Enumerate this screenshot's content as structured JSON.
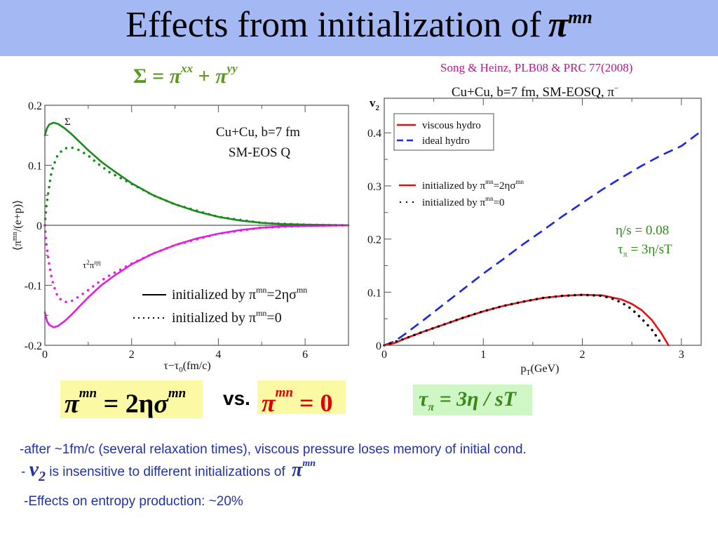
{
  "slide": {
    "title_text": "Effects from initialization of",
    "title_symbol": "π",
    "title_superscript": "mn",
    "citation": "Song & Heinz, PLB08 & PRC 77(2008)",
    "sigma_equation": {
      "lhs": "Σ",
      "eq": " = ",
      "pi1": "π",
      "sup1": "xx",
      "plus": " + ",
      "pi2": "π",
      "sup2": "yy"
    },
    "eq_navier_stokes": {
      "pi": "π",
      "sup": "mn",
      "rest": " = 2η",
      "sigma": "σ",
      "sup2": "mn"
    },
    "vs_label": "vs.",
    "eq_zero": {
      "pi": "π",
      "sup": "mn",
      "rest": " = 0"
    },
    "eq_tau": {
      "tau": "τ",
      "sub": "π",
      "rest": " = 3η / sT"
    },
    "bullets": [
      "-after ~1fm/c (several relaxation times), viscous pressure loses memory of initial cond.",
      {
        "prefix": "- ",
        "v": "v",
        "v_sub": "2",
        "text": " is insensitive to different initializations of ",
        "pi": "π",
        "pi_sup": "mn"
      },
      "-Effects on entropy production: ~20%"
    ],
    "colors": {
      "title_bar": "#a4b8f4",
      "citation": "#c0148c",
      "sigma_green": "#5a9a1a",
      "curve_green": "#1a8a1a",
      "curve_magenta": "#e020e0",
      "viscous_red": "#e81010",
      "ideal_blue": "#1a28e0",
      "bullet_text": "#2233a0",
      "eq_yellow": "#fbf9a4",
      "eq_green": "#cff7c6"
    }
  },
  "chart_data": [
    {
      "type": "line",
      "title": "",
      "annotation_lines": [
        "Cu+Cu, b=7 fm",
        "SM-EOS Q"
      ],
      "xlabel": "τ−τ0(fm/c)",
      "ylabel": "⟨π^mn/(e+p)⟩",
      "xlim": [
        0,
        7
      ],
      "ylim": [
        -0.2,
        0.2
      ],
      "xticks": [
        0,
        2,
        4,
        6
      ],
      "xtick_labels": [
        "0",
        "2",
        "4",
        "6"
      ],
      "yticks": [
        -0.2,
        -0.1,
        0,
        0.1,
        0.2
      ],
      "ytick_labels": [
        "-0.2",
        "-0.1",
        "0",
        "0.1",
        "0.2"
      ],
      "grid": false,
      "curve_labels": [
        {
          "text": "Σ",
          "x": 0.5,
          "y": 0.17
        },
        {
          "text": "τ²π^ηη",
          "x": 0.85,
          "y": -0.07
        }
      ],
      "legend": {
        "placement": "bottom-right",
        "entries": [
          {
            "style": "solid",
            "label": "initialized by π^mn=2ησ^mn"
          },
          {
            "style": "dotted",
            "label": "initialized by π^mn=0"
          }
        ]
      },
      "series": [
        {
          "name": "Σ, initialized by π^mn=2ησ^mn",
          "color": "#1a8a1a",
          "style": "solid",
          "x": [
            0,
            0.05,
            0.1,
            0.2,
            0.3,
            0.45,
            0.6,
            0.8,
            1.0,
            1.3,
            1.6,
            2.0,
            2.5,
            3.0,
            3.5,
            4.0,
            4.5,
            5.0,
            5.5,
            6.0,
            6.5,
            7.0
          ],
          "y": [
            0.15,
            0.162,
            0.168,
            0.171,
            0.169,
            0.162,
            0.153,
            0.139,
            0.125,
            0.106,
            0.09,
            0.07,
            0.05,
            0.035,
            0.023,
            0.014,
            0.008,
            0.004,
            0.002,
            0.001,
            0.0005,
            0.0
          ]
        },
        {
          "name": "Σ, initialized by π^mn=0",
          "color": "#1a8a1a",
          "style": "dotted",
          "x": [
            0,
            0.02,
            0.04,
            0.07,
            0.1,
            0.15,
            0.2,
            0.3,
            0.45,
            0.6,
            0.8,
            1.0,
            1.2,
            1.5,
            2.0,
            2.5,
            3.0,
            4.0,
            5.0,
            6.0,
            7.0
          ],
          "y": [
            0.0,
            0.02,
            0.035,
            0.05,
            0.065,
            0.088,
            0.1,
            0.118,
            0.128,
            0.13,
            0.125,
            0.116,
            0.104,
            0.088,
            0.069,
            0.05,
            0.035,
            0.014,
            0.004,
            0.001,
            0.0
          ]
        },
        {
          "name": "τ²π^ηη, initialized by π^mn=2ησ^mn",
          "color": "#e020e0",
          "style": "solid",
          "x": [
            0,
            0.05,
            0.1,
            0.2,
            0.3,
            0.45,
            0.6,
            0.8,
            1.0,
            1.3,
            1.6,
            2.0,
            2.5,
            3.0,
            3.5,
            4.0,
            4.5,
            5.0,
            5.5,
            6.0,
            6.5,
            7.0
          ],
          "y": [
            -0.145,
            -0.16,
            -0.166,
            -0.17,
            -0.168,
            -0.16,
            -0.15,
            -0.135,
            -0.12,
            -0.1,
            -0.084,
            -0.065,
            -0.047,
            -0.033,
            -0.022,
            -0.014,
            -0.008,
            -0.004,
            -0.002,
            -0.001,
            -0.0005,
            0.0
          ]
        },
        {
          "name": "τ²π^ηη, initialized by π^mn=0",
          "color": "#e020e0",
          "style": "dotted",
          "x": [
            0,
            0.02,
            0.04,
            0.07,
            0.1,
            0.15,
            0.2,
            0.3,
            0.45,
            0.6,
            0.8,
            1.0,
            1.2,
            1.5,
            2.0,
            2.5,
            3.0,
            4.0,
            5.0,
            6.0,
            7.0
          ],
          "y": [
            0.0,
            -0.02,
            -0.035,
            -0.05,
            -0.065,
            -0.085,
            -0.1,
            -0.12,
            -0.128,
            -0.127,
            -0.118,
            -0.108,
            -0.097,
            -0.083,
            -0.064,
            -0.047,
            -0.033,
            -0.014,
            -0.004,
            -0.001,
            0.0
          ]
        }
      ]
    },
    {
      "type": "line",
      "title": "Cu+Cu, b=7 fm, SM-EOSQ, π⁻",
      "xlabel": "p_T(GeV)",
      "ylabel": "v₂",
      "xlim": [
        0,
        3.2
      ],
      "ylim": [
        0,
        0.465
      ],
      "xticks": [
        0,
        1,
        2,
        3
      ],
      "xtick_labels": [
        "0",
        "1",
        "2",
        "3"
      ],
      "yticks": [
        0,
        0.1,
        0.2,
        0.3,
        0.4
      ],
      "ytick_labels": [
        "0",
        "0.1",
        "0.2",
        "0.3",
        "0.4"
      ],
      "grid": false,
      "annotation_lines": [
        "η/s = 0.08",
        "τπ = 3η/sT"
      ],
      "legend": {
        "placement": "top-left",
        "entries": [
          {
            "style": "solid",
            "color": "#e81010",
            "label": "viscous hydro"
          },
          {
            "style": "dashed",
            "color": "#1a28e0",
            "label": "ideal hydro"
          }
        ]
      },
      "legend2": {
        "placement": "upper-left",
        "entries": [
          {
            "style": "solid",
            "color": "#e81010",
            "label": "initialized by π^mn=2ησ^mn"
          },
          {
            "style": "dotted",
            "color": "#000000",
            "label": "initialized by π^mn=0"
          }
        ]
      },
      "series": [
        {
          "name": "ideal hydro",
          "color": "#1a28e0",
          "style": "dashed",
          "x": [
            0,
            0.1,
            0.2,
            0.4,
            0.6,
            0.8,
            1.0,
            1.2,
            1.4,
            1.6,
            1.8,
            2.0,
            2.2,
            2.4,
            2.6,
            2.8,
            3.0,
            3.2
          ],
          "y": [
            0.0,
            0.007,
            0.02,
            0.048,
            0.077,
            0.106,
            0.135,
            0.162,
            0.19,
            0.216,
            0.243,
            0.268,
            0.293,
            0.316,
            0.338,
            0.358,
            0.375,
            0.403
          ]
        },
        {
          "name": "viscous hydro, initialized by π^mn=2ησ^mn",
          "color": "#e81010",
          "style": "solid",
          "x": [
            0,
            0.1,
            0.2,
            0.4,
            0.6,
            0.8,
            1.0,
            1.2,
            1.4,
            1.6,
            1.8,
            2.0,
            2.2,
            2.4,
            2.5,
            2.6,
            2.7,
            2.8,
            2.87
          ],
          "y": [
            0.0,
            0.004,
            0.012,
            0.026,
            0.039,
            0.052,
            0.064,
            0.074,
            0.082,
            0.089,
            0.093,
            0.095,
            0.094,
            0.086,
            0.078,
            0.066,
            0.048,
            0.022,
            0.0
          ]
        },
        {
          "name": "viscous hydro, initialized by π^mn=0",
          "color": "#000000",
          "style": "dotted",
          "x": [
            0,
            0.2,
            0.4,
            0.6,
            0.8,
            1.0,
            1.2,
            1.4,
            1.6,
            1.8,
            2.0,
            2.2,
            2.3,
            2.4,
            2.5,
            2.6,
            2.7,
            2.78
          ],
          "y": [
            0.0,
            0.012,
            0.026,
            0.039,
            0.052,
            0.064,
            0.074,
            0.082,
            0.089,
            0.093,
            0.095,
            0.093,
            0.088,
            0.08,
            0.068,
            0.05,
            0.03,
            0.008
          ]
        }
      ]
    }
  ]
}
